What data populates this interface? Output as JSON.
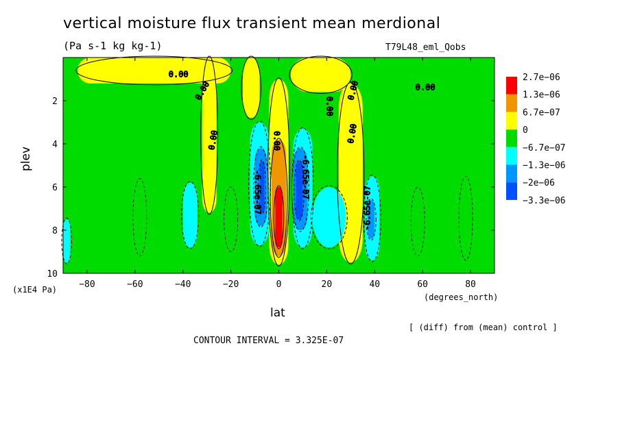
{
  "header": {
    "title": "vertical moisture flux transient mean merdional",
    "units": "(Pa s-1 kg kg-1)",
    "run_label": "T79L48_eml_Qobs"
  },
  "footer": {
    "diff_note": "[ (diff) from (mean) control ]",
    "contour_interval": "CONTOUR INTERVAL = 3.325E-07"
  },
  "colors": {
    "red": "#ff0000",
    "orange": "#f09600",
    "yellow": "#ffff00",
    "green": "#00dc00",
    "cyan": "#00ffff",
    "blue_mid": "#0096ff",
    "blue_dark": "#0050ff"
  },
  "chart_data": {
    "type": "heatmap",
    "xlabel": "lat",
    "ylabel": "plev",
    "xunit": "(degrees_north)",
    "yunit": "(x1E4 Pa)",
    "xlim": [
      -90,
      90
    ],
    "ylim": [
      10,
      0
    ],
    "xticks": [
      -80,
      -60,
      -40,
      -20,
      0,
      20,
      40,
      60,
      80
    ],
    "yticks": [
      2,
      4,
      6,
      8,
      10
    ],
    "contour_interval": 3.325e-07,
    "legend": {
      "placement": "right",
      "labels": [
        "2.7e-06",
        "1.3e-06",
        "6.7e-07",
        "0",
        "-6.7e-07",
        "-1.3e-06",
        "-2e-06",
        "-3.3e-06"
      ],
      "colors": [
        "#ff0000",
        "#f09600",
        "#ffff00",
        "#00dc00",
        "#00ffff",
        "#0096ff",
        "#0050ff"
      ]
    },
    "contour_labels": [
      "0.00",
      "-6.65e-07",
      "-6.65e-07"
    ],
    "regions": [
      {
        "level": "yellow",
        "lat": [
          -84,
          -20
        ],
        "plev": [
          0,
          1.2
        ]
      },
      {
        "level": "yellow",
        "lat": [
          -32,
          -26
        ],
        "plev": [
          0,
          7.2
        ]
      },
      {
        "level": "yellow",
        "lat": [
          -15,
          -8
        ],
        "plev": [
          0,
          2.8
        ]
      },
      {
        "level": "yellow",
        "lat": [
          -4,
          4
        ],
        "plev": [
          1,
          9.6
        ]
      },
      {
        "level": "yellow",
        "lat": [
          5,
          30
        ],
        "plev": [
          0,
          1.6
        ]
      },
      {
        "level": "yellow",
        "lat": [
          25,
          35
        ],
        "plev": [
          1.2,
          9.5
        ]
      },
      {
        "level": "orange",
        "lat": [
          -3,
          3
        ],
        "plev": [
          3.8,
          9.2
        ]
      },
      {
        "level": "red",
        "lat": [
          -1.5,
          1.5
        ],
        "plev": [
          6,
          8.8
        ]
      },
      {
        "level": "cyan",
        "lat": [
          -12,
          -4
        ],
        "plev": [
          3,
          8.7
        ]
      },
      {
        "level": "blue_mid",
        "lat": [
          -10,
          -5
        ],
        "plev": [
          4.2,
          7.8
        ]
      },
      {
        "level": "blue_dark",
        "lat": [
          -8,
          -6
        ],
        "plev": [
          4.8,
          7.2
        ]
      },
      {
        "level": "cyan",
        "lat": [
          6,
          14
        ],
        "plev": [
          3.3,
          8.8
        ]
      },
      {
        "level": "blue_mid",
        "lat": [
          6,
          12
        ],
        "plev": [
          4.2,
          8
        ]
      },
      {
        "level": "blue_dark",
        "lat": [
          7,
          10
        ],
        "plev": [
          4.8,
          7.5
        ]
      },
      {
        "level": "cyan",
        "lat": [
          14,
          28
        ],
        "plev": [
          6,
          8.8
        ]
      },
      {
        "level": "cyan",
        "lat": [
          -40,
          -34
        ],
        "plev": [
          5.8,
          8.8
        ]
      },
      {
        "level": "cyan",
        "lat": [
          36,
          42
        ],
        "plev": [
          5.5,
          9.4
        ]
      },
      {
        "level": "blue_mid",
        "lat": [
          37,
          40
        ],
        "plev": [
          6.6,
          8.4
        ]
      },
      {
        "level": "cyan",
        "lat": [
          -90,
          -87
        ],
        "plev": [
          7.5,
          9.5
        ]
      }
    ]
  }
}
